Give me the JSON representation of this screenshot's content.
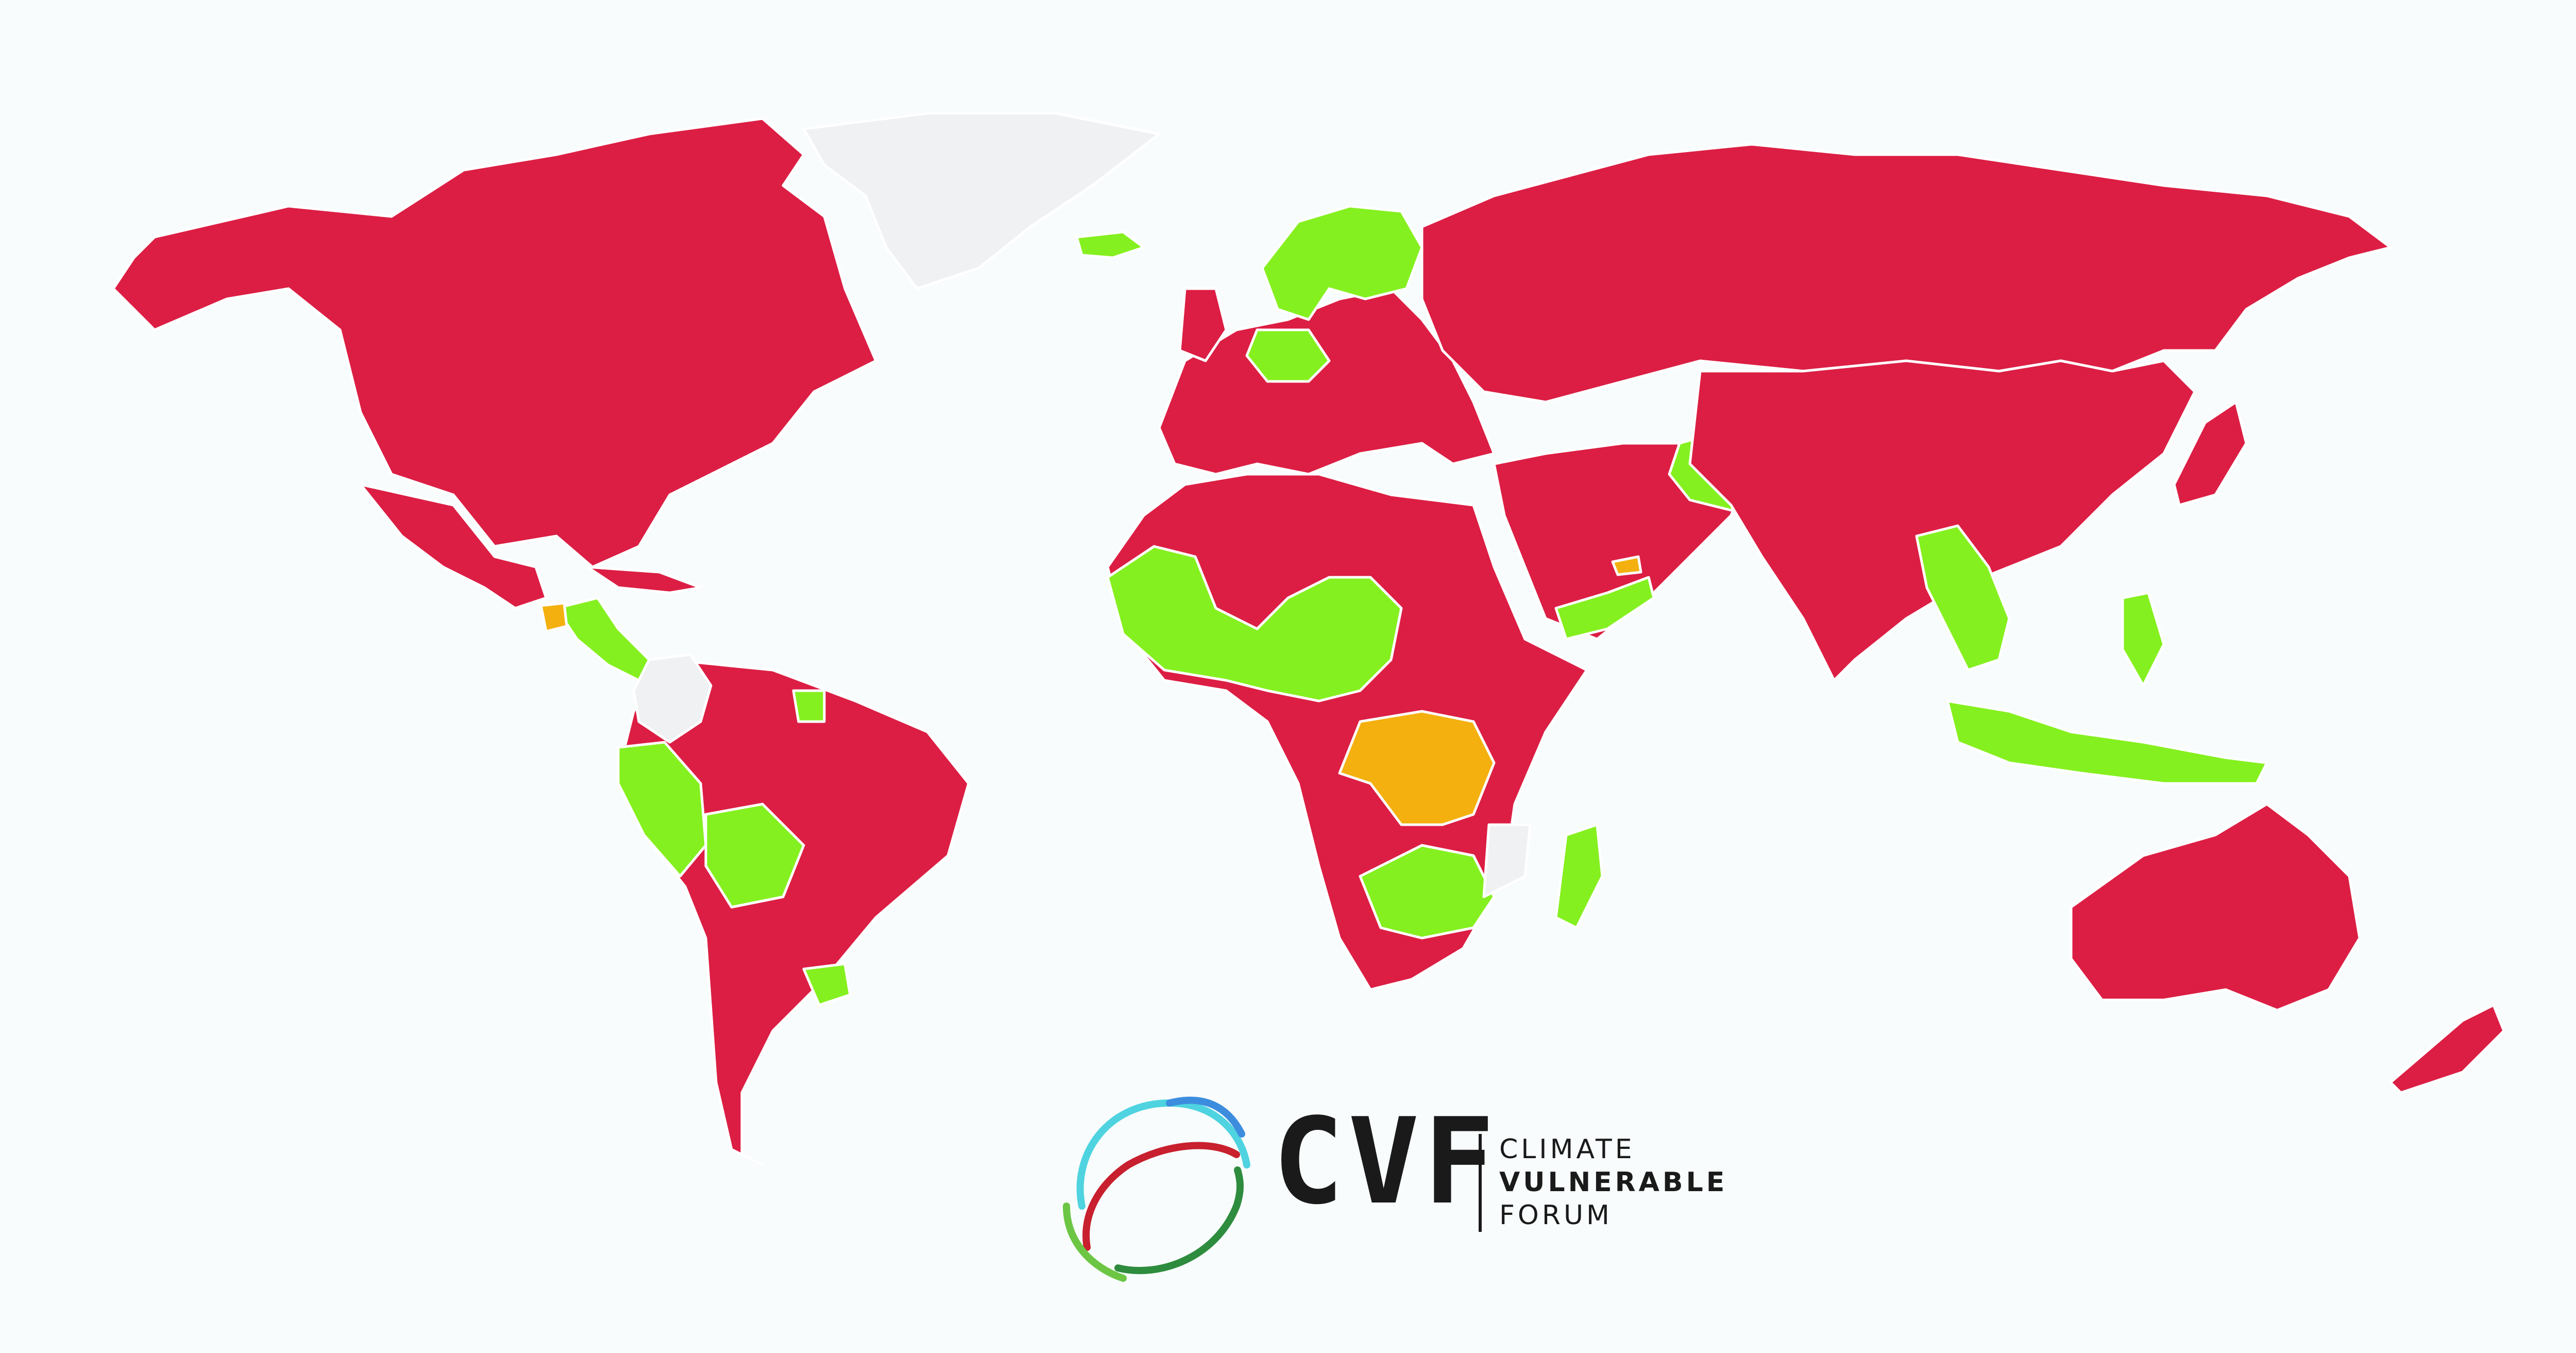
{
  "map": {
    "colors": {
      "background": "#f8fcfc",
      "red": "#dc1e44",
      "green": "#85f01f",
      "orange": "#f4b00e",
      "grey": "#f0f1f2",
      "coast": "#707a7f"
    },
    "regions": [
      {
        "name": "North America",
        "color": "red"
      },
      {
        "name": "Greenland",
        "color": "grey"
      },
      {
        "name": "Iceland",
        "color": "green"
      },
      {
        "name": "Central America",
        "color": "green"
      },
      {
        "name": "Guatemala",
        "color": "orange"
      },
      {
        "name": "Caribbean",
        "color": "red"
      },
      {
        "name": "South America",
        "color": "red"
      },
      {
        "name": "Colombia",
        "color": "grey"
      },
      {
        "name": "Peru",
        "color": "green"
      },
      {
        "name": "Bolivia",
        "color": "green"
      },
      {
        "name": "Uruguay",
        "color": "green"
      },
      {
        "name": "Guyana",
        "color": "green"
      },
      {
        "name": "Europe",
        "color": "red"
      },
      {
        "name": "Scandinavia",
        "color": "green"
      },
      {
        "name": "Germany",
        "color": "green"
      },
      {
        "name": "Russia",
        "color": "red"
      },
      {
        "name": "Middle East",
        "color": "red"
      },
      {
        "name": "Afghanistan",
        "color": "green"
      },
      {
        "name": "Yemen",
        "color": "green"
      },
      {
        "name": "UAE",
        "color": "orange"
      },
      {
        "name": "Africa",
        "color": "red"
      },
      {
        "name": "West Africa",
        "color": "green"
      },
      {
        "name": "Democratic Republic of the Congo",
        "color": "orange"
      },
      {
        "name": "Southern Africa",
        "color": "green"
      },
      {
        "name": "Madagascar",
        "color": "green"
      },
      {
        "name": "Mozambique",
        "color": "grey"
      },
      {
        "name": "Asia",
        "color": "red"
      },
      {
        "name": "Southeast Asia",
        "color": "green"
      },
      {
        "name": "Indonesia",
        "color": "green"
      },
      {
        "name": "Philippines",
        "color": "green"
      },
      {
        "name": "Australia",
        "color": "red"
      },
      {
        "name": "New Zealand",
        "color": "red"
      }
    ]
  },
  "logo": {
    "abbreviation": "CVF",
    "line1": "CLIMATE",
    "line2": "VULNERABLE",
    "line3": "FORUM",
    "colors": [
      "#4fd3e0",
      "#3d8ddf",
      "#c8202e",
      "#2e8c3e",
      "#6cc644"
    ]
  }
}
